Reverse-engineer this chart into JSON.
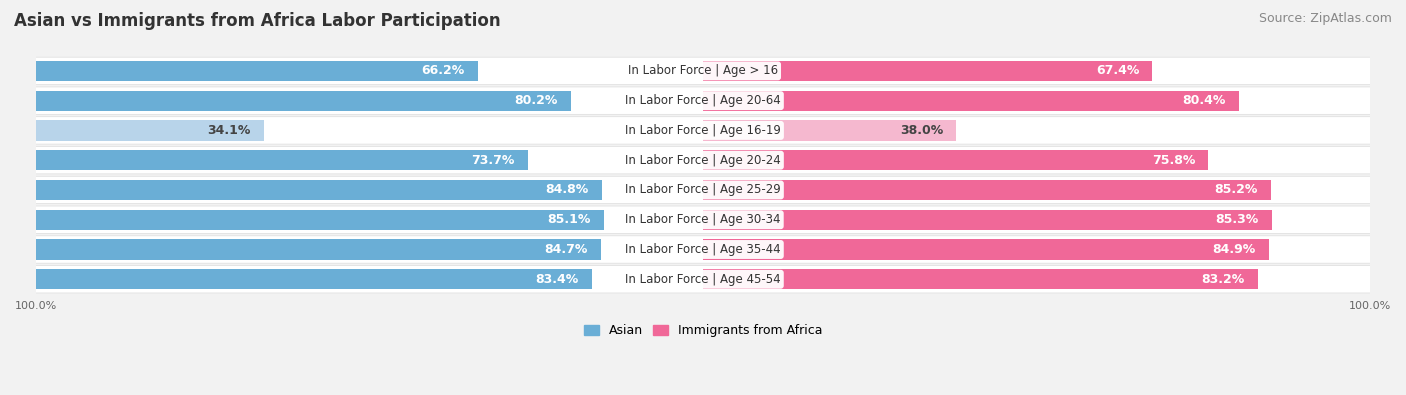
{
  "title": "Asian vs Immigrants from Africa Labor Participation",
  "source": "Source: ZipAtlas.com",
  "categories": [
    "In Labor Force | Age > 16",
    "In Labor Force | Age 20-64",
    "In Labor Force | Age 16-19",
    "In Labor Force | Age 20-24",
    "In Labor Force | Age 25-29",
    "In Labor Force | Age 30-34",
    "In Labor Force | Age 35-44",
    "In Labor Force | Age 45-54"
  ],
  "asian_values": [
    66.2,
    80.2,
    34.1,
    73.7,
    84.8,
    85.1,
    84.7,
    83.4
  ],
  "africa_values": [
    67.4,
    80.4,
    38.0,
    75.8,
    85.2,
    85.3,
    84.9,
    83.2
  ],
  "asian_color_full": "#6aaed6",
  "asian_color_light": "#b8d4ea",
  "africa_color_full": "#f06898",
  "africa_color_light": "#f5b8cf",
  "bar_height": 0.68,
  "background_color": "#f2f2f2",
  "row_bg_color": "#ffffff",
  "row_border_color": "#dddddd",
  "label_color_white": "#ffffff",
  "label_color_dark": "#444444",
  "max_value": 100.0,
  "title_fontsize": 12,
  "source_fontsize": 9,
  "label_fontsize": 9,
  "category_fontsize": 8.5,
  "axis_label_fontsize": 8,
  "legend_fontsize": 9
}
